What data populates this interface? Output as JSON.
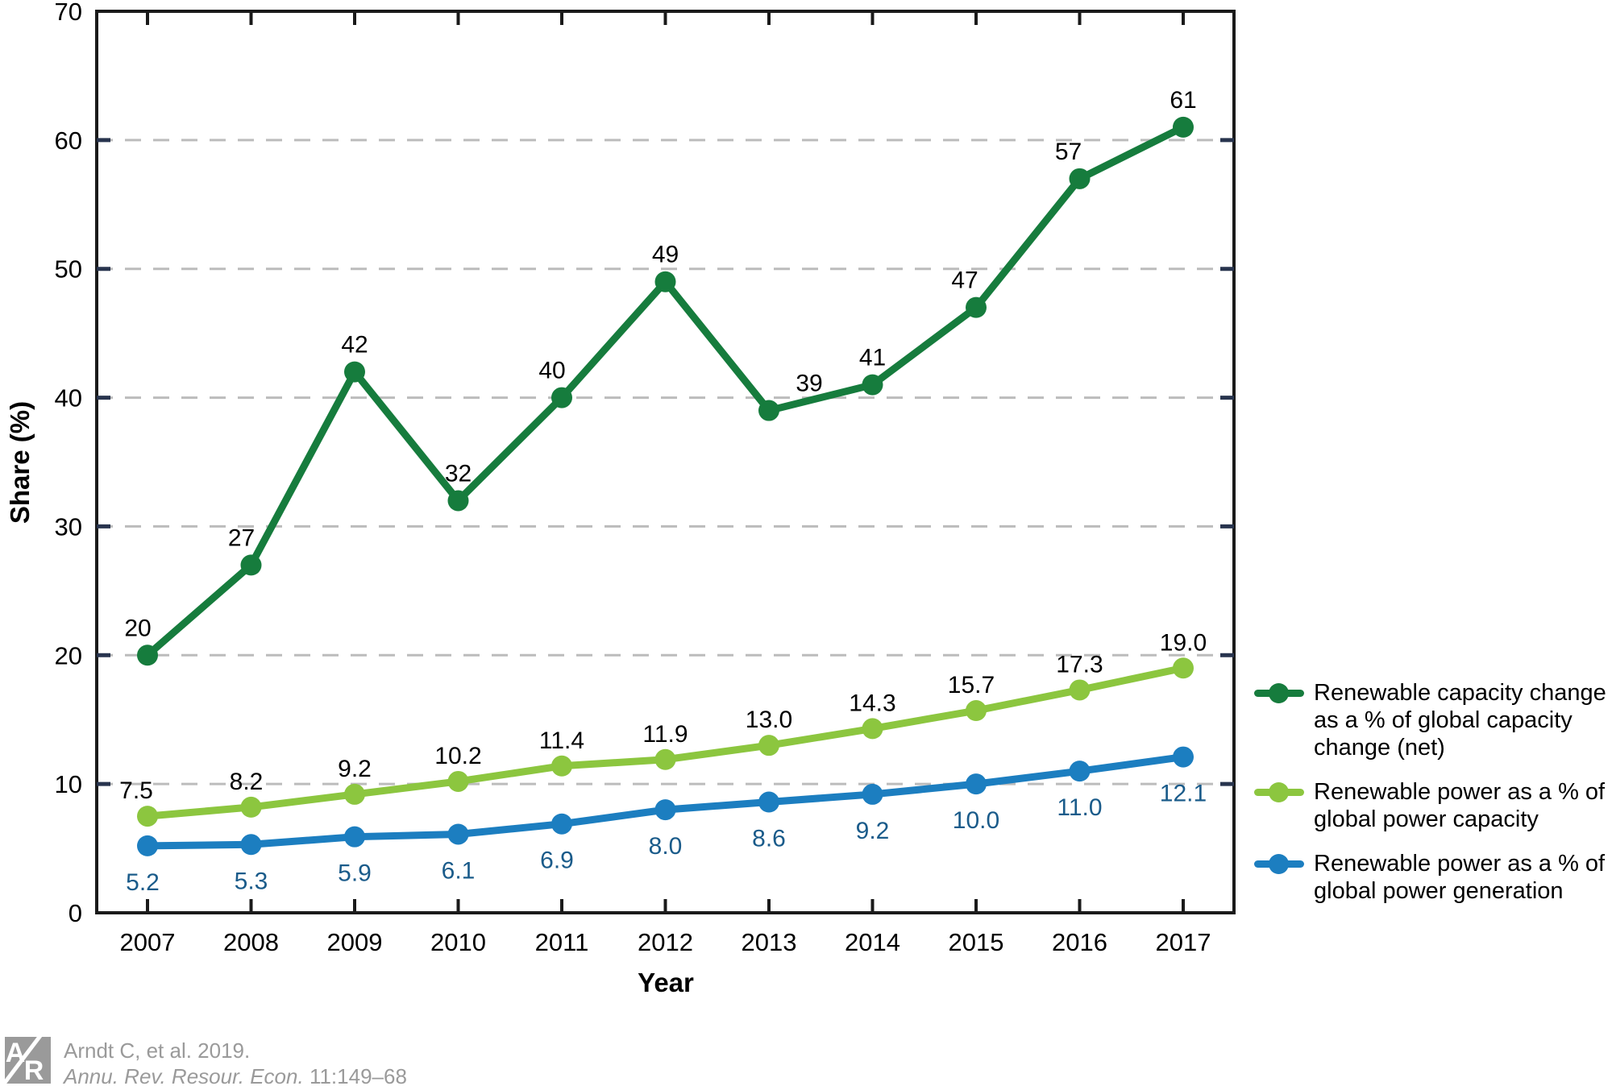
{
  "chart_data": {
    "type": "line",
    "x": [
      "2007",
      "2008",
      "2009",
      "2010",
      "2011",
      "2012",
      "2013",
      "2014",
      "2015",
      "2016",
      "2017"
    ],
    "series": [
      {
        "name": "Renewable capacity change as a % of global capacity change (net)",
        "color": "#167C3D",
        "label_color": "#000000",
        "label_position": "above",
        "values": [
          20,
          27,
          42,
          32,
          40,
          49,
          39,
          41,
          47,
          57,
          61
        ],
        "labels": [
          "20",
          "27",
          "42",
          "32",
          "40",
          "49",
          "39",
          "41",
          "47",
          "57",
          "61"
        ]
      },
      {
        "name": "Renewable power as a % of global power capacity",
        "color": "#8CC63F",
        "label_color": "#000000",
        "label_position": "above",
        "values": [
          7.5,
          8.2,
          9.2,
          10.2,
          11.4,
          11.9,
          13.0,
          14.3,
          15.7,
          17.3,
          19.0
        ],
        "labels": [
          "7.5",
          "8.2",
          "9.2",
          "10.2",
          "11.4",
          "11.9",
          "13.0",
          "14.3",
          "15.7",
          "17.3",
          "19.0"
        ]
      },
      {
        "name": "Renewable power as a % of global power generation",
        "color": "#1C7EC0",
        "label_color": "#1A5B8A",
        "label_position": "below",
        "values": [
          5.2,
          5.3,
          5.9,
          6.1,
          6.9,
          8.0,
          8.6,
          9.2,
          10.0,
          11.0,
          12.1
        ],
        "labels": [
          "5.2",
          "5.3",
          "5.9",
          "6.1",
          "6.9",
          "8.0",
          "8.6",
          "9.2",
          "10.0",
          "11.0",
          "12.1"
        ]
      }
    ],
    "xlabel": "Year",
    "ylabel": "Share (%)",
    "ylim": [
      0,
      70
    ],
    "yticks": [
      0,
      10,
      20,
      30,
      40,
      50,
      60,
      70
    ],
    "grid": "horizontal dashed at 10,20,30,40,50,60",
    "legend_position": "right",
    "colors": {
      "axis": "#1a1a1a",
      "y_tick": "#28344e",
      "x_tick": "#1a1a1a",
      "gridline": "#bcbcbc"
    }
  },
  "legend": {
    "items": [
      {
        "lines": [
          "Renewable capacity change",
          "as a % of global capacity",
          "change (net)"
        ]
      },
      {
        "lines": [
          "Renewable power as a % of",
          "global power capacity"
        ]
      },
      {
        "lines": [
          "Renewable power as a % of",
          "global power generation"
        ]
      }
    ]
  },
  "citation": {
    "line1": "Arndt C, et al. 2019.",
    "line2_italic": "Annu. Rev. Resour. Econ.",
    "line2_rest": " 11:149–68",
    "logo_letter_a": "A",
    "logo_letter_r": "R",
    "logo_color": "#9a9a9a"
  }
}
